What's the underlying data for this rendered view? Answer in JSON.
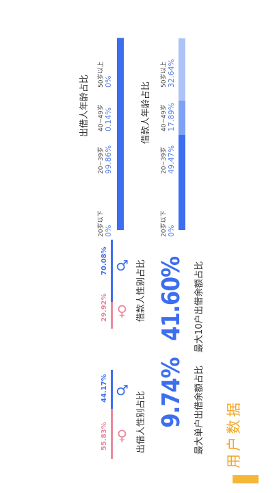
{
  "section": {
    "title": "用户数据",
    "accent_color": "#f6b737"
  },
  "stats": {
    "single_max": {
      "label": "最大单户出借余额占比",
      "value": "9.74%"
    },
    "top10": {
      "label": "最大10户出借余额占比",
      "value": "41.60%"
    }
  },
  "lender_gender": {
    "title": "出借人性别占比",
    "female": {
      "icon": "female-icon",
      "pct": "55.83%",
      "value": 55.83,
      "color": "#e9899e"
    },
    "male": {
      "icon": "male-icon",
      "pct": "44.17%",
      "value": 44.17,
      "color": "#3d6ef0"
    }
  },
  "borrower_gender": {
    "title": "借款人性别占比",
    "female": {
      "icon": "female-icon",
      "pct": "29.92%",
      "value": 29.92,
      "color": "#e9899e"
    },
    "male": {
      "icon": "male-icon",
      "pct": "70.08%",
      "value": 70.08,
      "color": "#3d6ef0"
    }
  },
  "lender_age": {
    "title": "出借人年龄占比",
    "groups": [
      {
        "label": "20岁以下",
        "pct": "0%",
        "value": 0
      },
      {
        "label": "20~39岁",
        "pct": "49.47%",
        "value": 49.47
      },
      {
        "label": "40~49岁",
        "pct": "17.89%",
        "value": 17.89
      },
      {
        "label": "50岁以上",
        "pct": "32.64%",
        "value": 32.64
      }
    ],
    "colors": [
      "#3d6ef0",
      "#3d6ef0",
      "#7ea0f5",
      "#adc3f8"
    ]
  },
  "borrower_age": {
    "title": "借款人年龄占比",
    "groups": [
      {
        "label": "20岁以下",
        "pct": "0%",
        "value": 0
      },
      {
        "label": "20~39岁",
        "pct": "99.86%",
        "value": 99.86
      },
      {
        "label": "40~49岁",
        "pct": "0.14%",
        "value": 0.14
      },
      {
        "label": "50岁以上",
        "pct": "0%",
        "value": 0
      }
    ],
    "colors": [
      "#3d6ef0",
      "#3d6ef0",
      "#7ea0f5",
      "#adc3f8"
    ]
  }
}
